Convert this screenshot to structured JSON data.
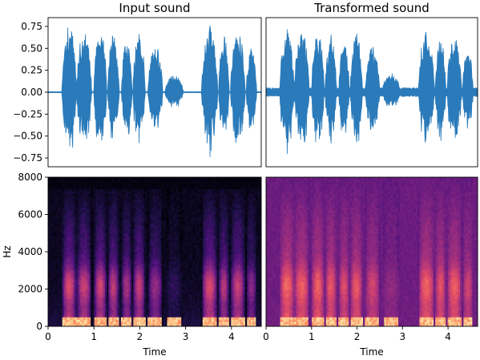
{
  "chart_data": [
    {
      "type": "line",
      "title": "Input sound",
      "xlabel": "",
      "ylabel": "",
      "xlim": [
        0,
        4.65
      ],
      "ylim": [
        -0.85,
        0.85
      ],
      "yticks": [
        -0.75,
        -0.5,
        -0.25,
        0.0,
        0.25,
        0.5,
        0.75
      ],
      "ytick_labels": [
        "−0.75",
        "−0.50",
        "−0.25",
        "0.00",
        "0.25",
        "0.50",
        "0.75"
      ],
      "color": "#2b7bba",
      "bursts": [
        {
          "start": 0.3,
          "end": 0.62,
          "amp": 0.78
        },
        {
          "start": 0.62,
          "end": 0.95,
          "amp": 0.72
        },
        {
          "start": 1.0,
          "end": 1.28,
          "amp": 0.74
        },
        {
          "start": 1.3,
          "end": 1.55,
          "amp": 0.68
        },
        {
          "start": 1.6,
          "end": 1.83,
          "amp": 0.6
        },
        {
          "start": 1.85,
          "end": 2.12,
          "amp": 0.7
        },
        {
          "start": 2.18,
          "end": 2.5,
          "amp": 0.55
        },
        {
          "start": 2.55,
          "end": 2.95,
          "amp": 0.2
        },
        {
          "start": 3.35,
          "end": 3.7,
          "amp": 0.78
        },
        {
          "start": 3.72,
          "end": 3.95,
          "amp": 0.65
        },
        {
          "start": 3.98,
          "end": 4.3,
          "amp": 0.72
        },
        {
          "start": 4.32,
          "end": 4.55,
          "amp": 0.5
        }
      ]
    },
    {
      "type": "line",
      "title": "Transformed sound",
      "xlabel": "",
      "ylabel": "",
      "xlim": [
        0,
        4.65
      ],
      "ylim": [
        -0.85,
        0.85
      ],
      "color": "#2b7bba",
      "noise_floor": 0.05,
      "bursts": [
        {
          "start": 0.3,
          "end": 0.62,
          "amp": 0.74
        },
        {
          "start": 0.62,
          "end": 0.95,
          "amp": 0.7
        },
        {
          "start": 1.0,
          "end": 1.28,
          "amp": 0.72
        },
        {
          "start": 1.3,
          "end": 1.55,
          "amp": 0.66
        },
        {
          "start": 1.6,
          "end": 1.83,
          "amp": 0.58
        },
        {
          "start": 1.85,
          "end": 2.12,
          "amp": 0.68
        },
        {
          "start": 2.18,
          "end": 2.5,
          "amp": 0.52
        },
        {
          "start": 2.55,
          "end": 2.95,
          "amp": 0.22
        },
        {
          "start": 3.35,
          "end": 3.7,
          "amp": 0.72
        },
        {
          "start": 3.72,
          "end": 3.95,
          "amp": 0.64
        },
        {
          "start": 3.98,
          "end": 4.3,
          "amp": 0.7
        },
        {
          "start": 4.32,
          "end": 4.55,
          "amp": 0.5
        }
      ]
    },
    {
      "type": "heatmap",
      "title": "",
      "xlabel": "Time",
      "ylabel": "Hz",
      "xlim": [
        0,
        4.65
      ],
      "ylim": [
        0,
        8000
      ],
      "xticks": [
        0,
        1,
        2,
        3,
        4
      ],
      "yticks": [
        0,
        2000,
        4000,
        6000,
        8000
      ],
      "colormap": "magma",
      "background_level": 0.03,
      "max_frequency_hz": 7400,
      "bursts": [
        {
          "start": 0.3,
          "end": 0.62,
          "amp": 0.78
        },
        {
          "start": 0.62,
          "end": 0.95,
          "amp": 0.72
        },
        {
          "start": 1.0,
          "end": 1.28,
          "amp": 0.74
        },
        {
          "start": 1.3,
          "end": 1.55,
          "amp": 0.68
        },
        {
          "start": 1.6,
          "end": 1.83,
          "amp": 0.6
        },
        {
          "start": 1.85,
          "end": 2.12,
          "amp": 0.7
        },
        {
          "start": 2.18,
          "end": 2.5,
          "amp": 0.55
        },
        {
          "start": 2.55,
          "end": 2.95,
          "amp": 0.2
        },
        {
          "start": 3.35,
          "end": 3.7,
          "amp": 0.78
        },
        {
          "start": 3.72,
          "end": 3.95,
          "amp": 0.65
        },
        {
          "start": 3.98,
          "end": 4.3,
          "amp": 0.72
        },
        {
          "start": 4.32,
          "end": 4.55,
          "amp": 0.5
        }
      ]
    },
    {
      "type": "heatmap",
      "title": "",
      "xlabel": "Time",
      "ylabel": "",
      "xlim": [
        0,
        4.65
      ],
      "ylim": [
        0,
        8000
      ],
      "xticks": [
        0,
        1,
        2,
        3,
        4
      ],
      "colormap": "magma",
      "background_level": 0.3,
      "max_frequency_hz": 8000,
      "bursts": [
        {
          "start": 0.3,
          "end": 0.62,
          "amp": 0.74
        },
        {
          "start": 0.62,
          "end": 0.95,
          "amp": 0.7
        },
        {
          "start": 1.0,
          "end": 1.28,
          "amp": 0.72
        },
        {
          "start": 1.3,
          "end": 1.55,
          "amp": 0.66
        },
        {
          "start": 1.6,
          "end": 1.83,
          "amp": 0.58
        },
        {
          "start": 1.85,
          "end": 2.12,
          "amp": 0.68
        },
        {
          "start": 2.18,
          "end": 2.5,
          "amp": 0.52
        },
        {
          "start": 2.55,
          "end": 2.95,
          "amp": 0.22
        },
        {
          "start": 3.35,
          "end": 3.7,
          "amp": 0.72
        },
        {
          "start": 3.72,
          "end": 3.95,
          "amp": 0.64
        },
        {
          "start": 3.98,
          "end": 4.3,
          "amp": 0.7
        },
        {
          "start": 4.32,
          "end": 4.55,
          "amp": 0.5
        }
      ]
    }
  ]
}
